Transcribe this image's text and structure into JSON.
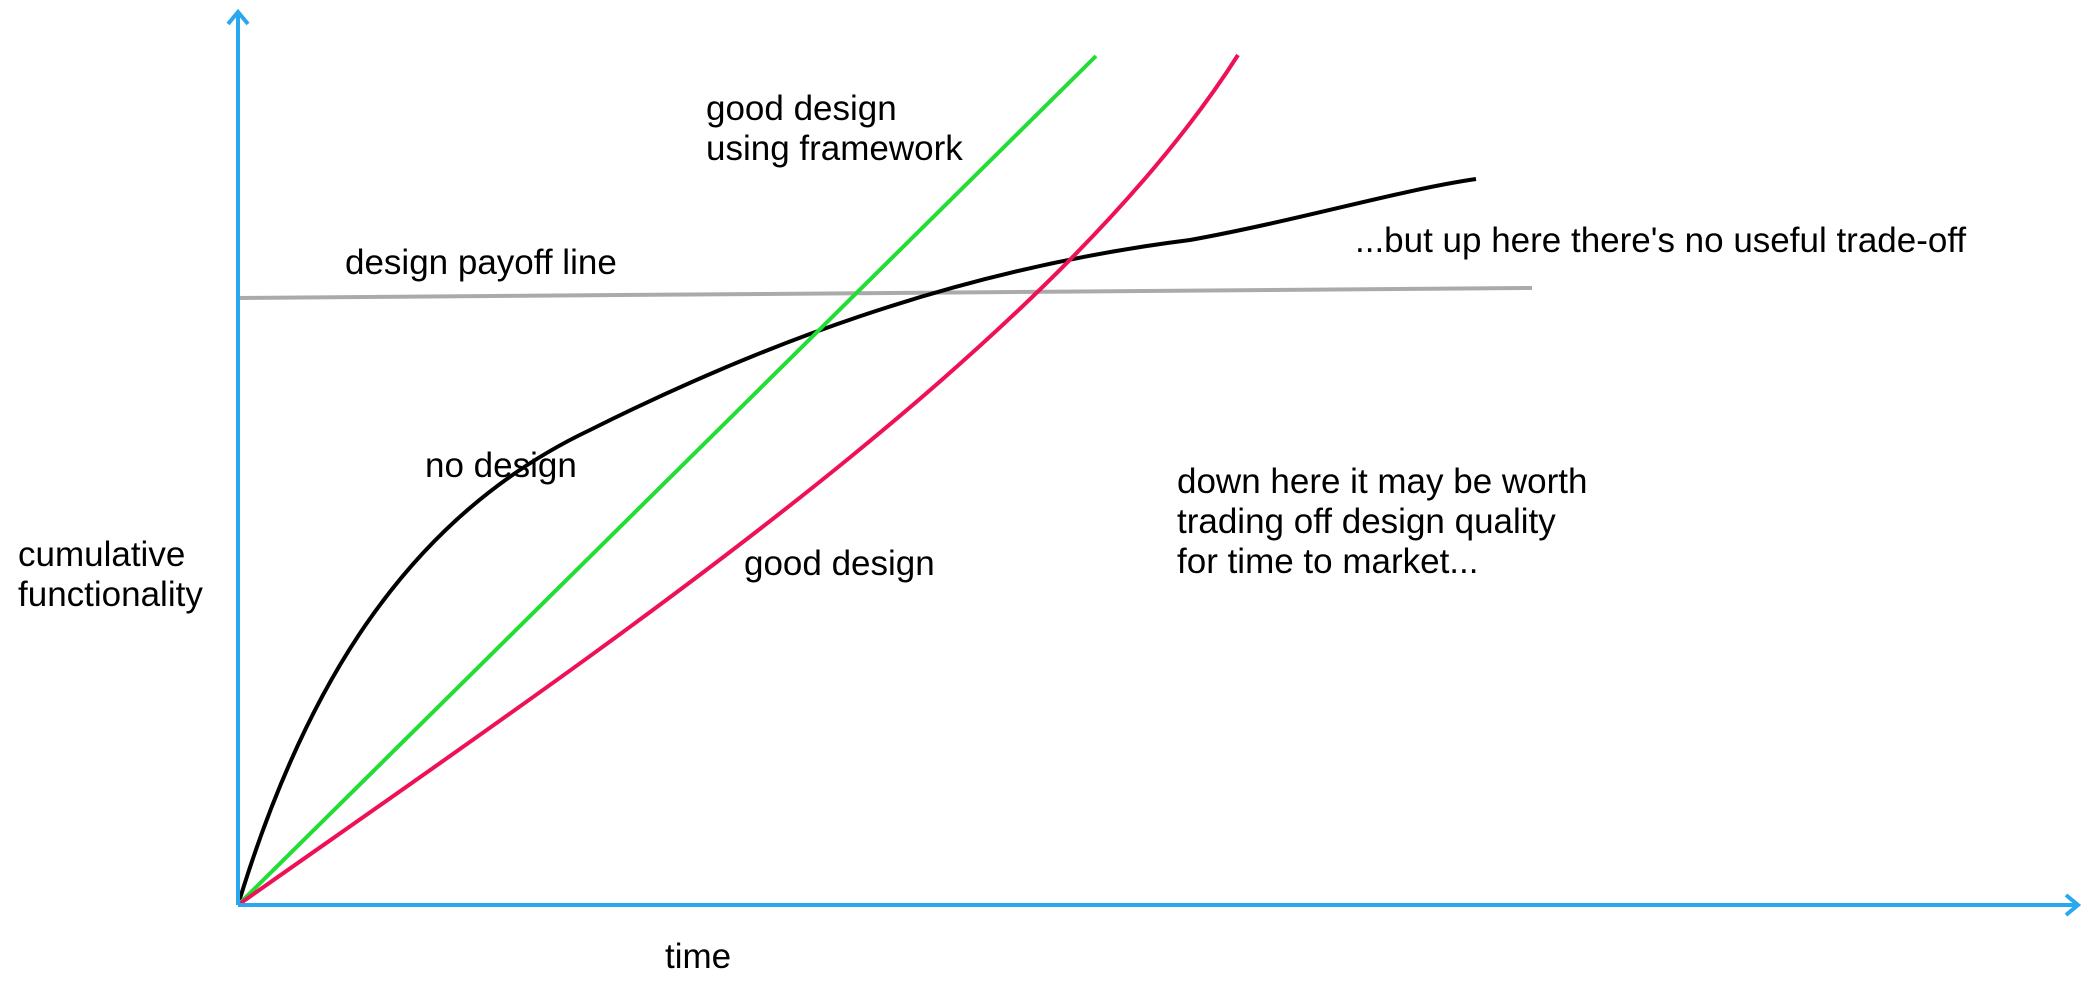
{
  "chart_data": {
    "type": "line",
    "xlabel": "time",
    "ylabel_lines": [
      "cumulative",
      "functionality"
    ],
    "axis_color": "#29a8f0",
    "series": [
      {
        "name": "no design",
        "color": "#000000",
        "shape": "concave, fast early growth that flattens over time"
      },
      {
        "name": "good design using framework",
        "color": "#22dd33",
        "shape": "straight line, steepest long-term slope"
      },
      {
        "name": "good design",
        "color": "#ee1155",
        "shape": "slightly convex, starts slow and accelerates"
      },
      {
        "name": "design payoff line",
        "color": "#aaaaaa",
        "shape": "near-horizontal reference line"
      }
    ],
    "labels": {
      "framework": [
        "good design",
        "using framework"
      ],
      "payoff": "design payoff line",
      "no_design": "no design",
      "good_design": "good design",
      "down_here": [
        "down here it may be worth",
        "trading off design quality",
        "for time to market..."
      ],
      "up_here": "...but up here there's no useful trade-off"
    }
  }
}
